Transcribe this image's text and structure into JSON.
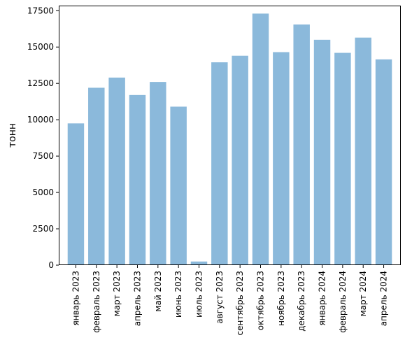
{
  "chart_data": {
    "type": "bar",
    "title": "",
    "xlabel": "",
    "ylabel": "тонн",
    "categories": [
      "январь 2023",
      "февраль 2023",
      "март 2023",
      "апрель 2023",
      "май 2023",
      "июнь 2023",
      "июль 2023",
      "август 2023",
      "сентябрь 2023",
      "октябрь 2023",
      "ноябрь 2023",
      "декабрь 2023",
      "январь 2024",
      "февраль 2024",
      "март 2024",
      "апрель 2024"
    ],
    "values": [
      9750,
      12200,
      12900,
      11700,
      12600,
      10900,
      250,
      13950,
      14400,
      17300,
      14650,
      16550,
      15500,
      14600,
      15650,
      14150
    ],
    "ylim": [
      0,
      17850
    ],
    "yticks": [
      0,
      2500,
      5000,
      7500,
      10000,
      12500,
      15000,
      17500
    ],
    "ytick_labels": [
      "0",
      "2500",
      "5000",
      "7500",
      "10000",
      "12500",
      "15000",
      "17500"
    ],
    "bar_color": "#8bb9db",
    "grid": false,
    "legend": "none"
  }
}
